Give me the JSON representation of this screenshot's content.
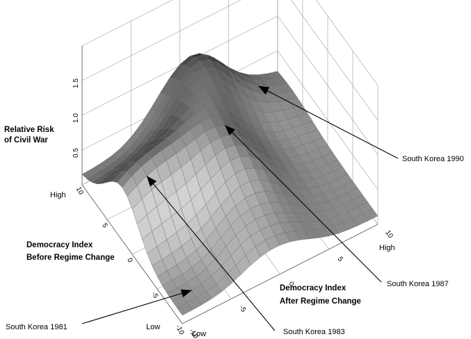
{
  "chart_data": {
    "type": "surface",
    "x_axis": {
      "label_line1": "Democracy Index",
      "label_line2": "After Regime Change",
      "ticks": [
        "-10",
        "-5",
        "0",
        "5",
        "10"
      ],
      "tick_values": [
        -10,
        -5,
        0,
        5,
        10
      ],
      "low_label": "Low",
      "high_label": "High",
      "range": [
        -10,
        10
      ]
    },
    "y_axis": {
      "label_line1": "Democracy Index",
      "label_line2": "Before Regime Change",
      "ticks": [
        "-10",
        "-5",
        "0",
        "5",
        "10"
      ],
      "tick_values": [
        -10,
        -5,
        0,
        5,
        10
      ],
      "low_label": "Low",
      "high_label": "High",
      "range": [
        -10,
        10
      ]
    },
    "z_axis": {
      "label_line1": "Relative Risk",
      "label_line2": "of Civil War",
      "ticks": [
        "0.5",
        "1.0",
        "1.5"
      ],
      "tick_values": [
        0.5,
        1.0,
        1.5
      ],
      "range": [
        0,
        1.8
      ]
    },
    "grid_resolution": 20,
    "annotations": [
      {
        "label": "South Korea 1981",
        "x": -8,
        "y": -8
      },
      {
        "label": "South Korea 1983",
        "x": -8,
        "y": 1
      },
      {
        "label": "South Korea 1987",
        "x": 0,
        "y": 1
      },
      {
        "label": "South Korea 1990",
        "x": 7,
        "y": 8
      }
    ]
  }
}
